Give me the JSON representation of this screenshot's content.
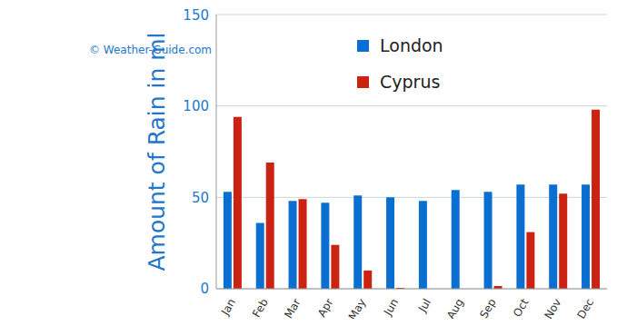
{
  "chart_data": {
    "type": "bar",
    "y_label": "Amount of Rain in ml",
    "annotation": "© Weather-Guide.com",
    "categories": [
      "Jan",
      "Feb",
      "Mar",
      "Apr",
      "May",
      "Jun",
      "Jul",
      "Aug",
      "Sep",
      "Oct",
      "Nov",
      "Dec"
    ],
    "series": [
      {
        "name": "London",
        "color": "#0a6fd0",
        "values": [
          53,
          36,
          48,
          47,
          51,
          50,
          48,
          54,
          53,
          57,
          57,
          57
        ]
      },
      {
        "name": "Cyprus",
        "color": "#cc2211",
        "values": [
          94,
          69,
          49,
          24,
          10,
          0.5,
          0,
          0,
          1.5,
          31,
          52,
          98
        ]
      }
    ],
    "ylim": [
      0,
      150
    ],
    "yticks": [
      0,
      50,
      100,
      150
    ],
    "grid": true,
    "legend": "top"
  }
}
